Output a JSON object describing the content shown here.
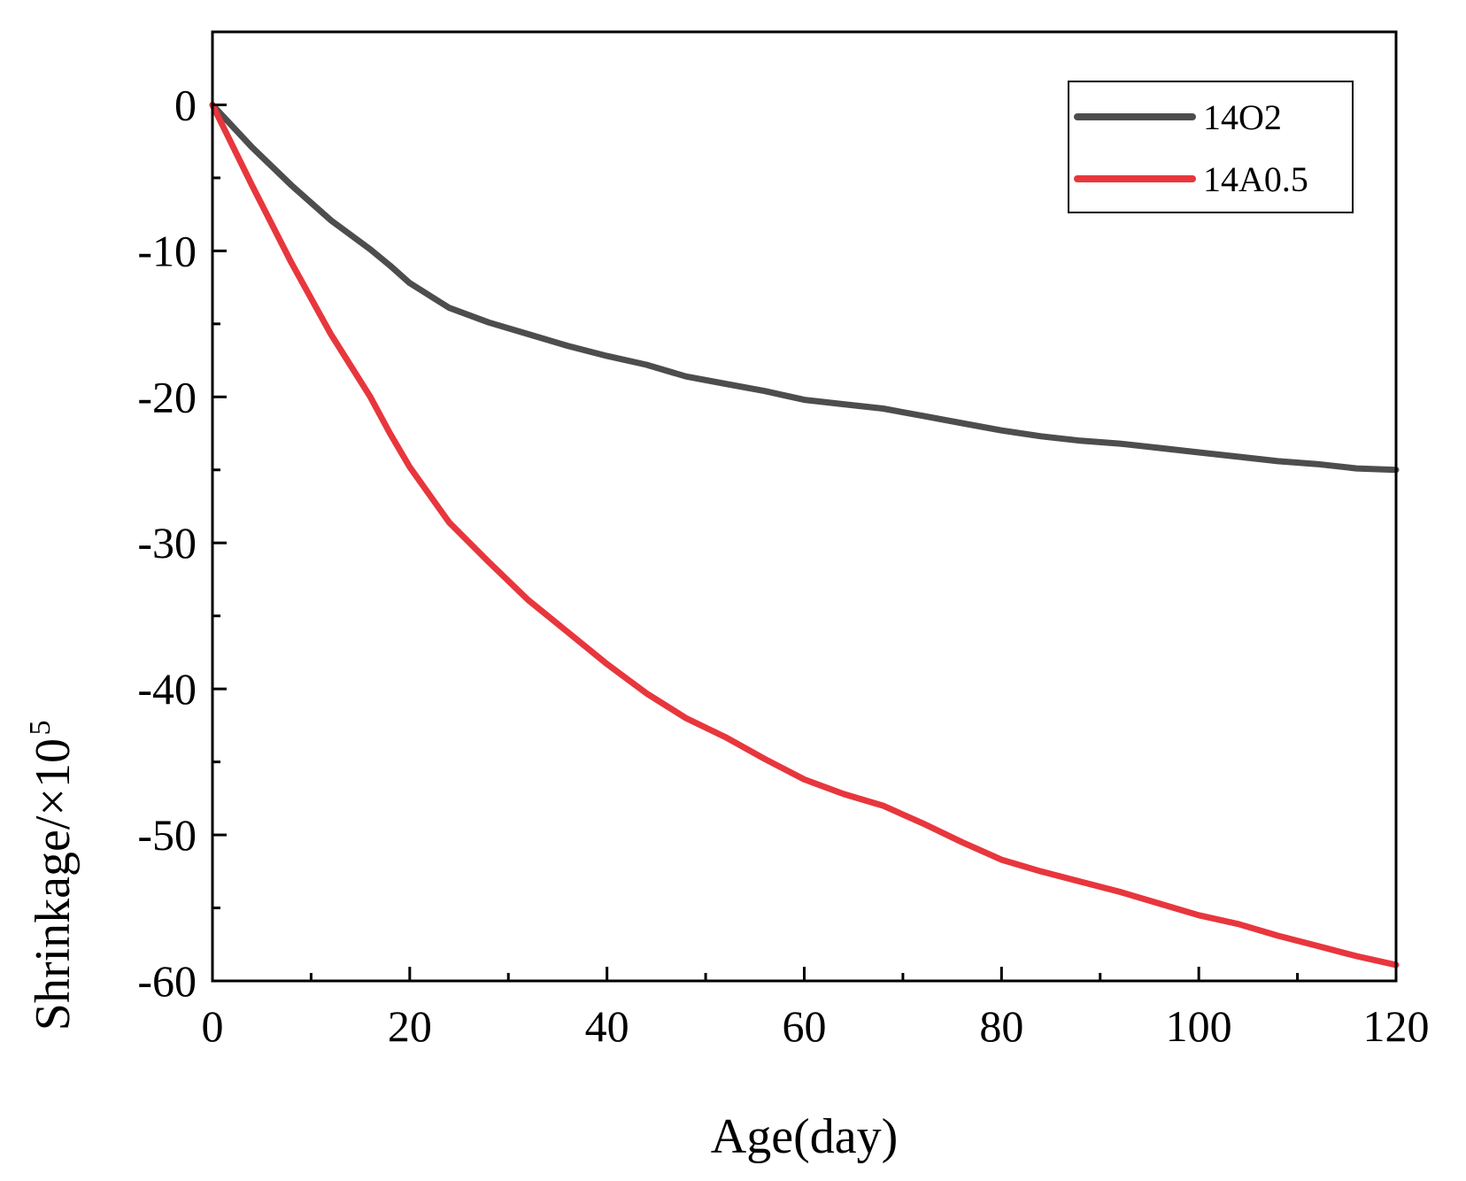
{
  "chart_data": {
    "type": "line",
    "title": "",
    "xlabel": "Age(day)",
    "ylabel": "Shrinkage/×10",
    "ylabel_superscript": "5",
    "xlim": [
      0,
      120
    ],
    "ylim": [
      -60,
      5
    ],
    "xticks": [
      0,
      20,
      40,
      60,
      80,
      100,
      120
    ],
    "yticks": [
      0,
      -10,
      -20,
      -30,
      -40,
      -50,
      -60
    ],
    "xtick_labels": [
      "0",
      "20",
      "40",
      "60",
      "80",
      "100",
      "120"
    ],
    "ytick_labels": [
      "0",
      "-10",
      "-20",
      "-30",
      "-40",
      "-50",
      "-60"
    ],
    "grid": false,
    "legend_position": "top-right",
    "series": [
      {
        "name": "14O2",
        "color": "#4d4d4d",
        "x": [
          0,
          4,
          8,
          12,
          16,
          18,
          20,
          24,
          28,
          32,
          36,
          40,
          44,
          48,
          52,
          56,
          60,
          64,
          68,
          72,
          76,
          80,
          84,
          88,
          92,
          96,
          100,
          104,
          108,
          112,
          116,
          120
        ],
        "y": [
          0,
          -2.9,
          -5.5,
          -7.9,
          -9.9,
          -11.0,
          -12.2,
          -13.9,
          -14.9,
          -15.7,
          -16.5,
          -17.2,
          -17.8,
          -18.6,
          -19.1,
          -19.6,
          -20.2,
          -20.5,
          -20.8,
          -21.3,
          -21.8,
          -22.3,
          -22.7,
          -23.0,
          -23.2,
          -23.5,
          -23.8,
          -24.1,
          -24.4,
          -24.6,
          -24.9,
          -25.0
        ]
      },
      {
        "name": "14A0.5",
        "color": "#e8363d",
        "x": [
          0,
          4,
          8,
          12,
          16,
          18,
          20,
          24,
          28,
          32,
          36,
          40,
          44,
          48,
          52,
          56,
          60,
          64,
          68,
          72,
          76,
          80,
          84,
          88,
          92,
          96,
          100,
          104,
          108,
          112,
          116,
          120
        ],
        "y": [
          0,
          -5.5,
          -10.8,
          -15.7,
          -20.0,
          -22.5,
          -24.8,
          -28.6,
          -31.3,
          -33.9,
          -36.1,
          -38.3,
          -40.3,
          -42.0,
          -43.3,
          -44.8,
          -46.2,
          -47.2,
          -48.0,
          -49.2,
          -50.5,
          -51.7,
          -52.5,
          -53.2,
          -53.9,
          -54.7,
          -55.5,
          -56.1,
          -56.9,
          -57.6,
          -58.3,
          -58.9
        ]
      }
    ]
  }
}
